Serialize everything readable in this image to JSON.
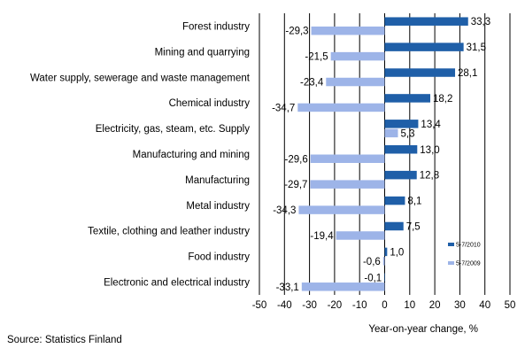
{
  "chart_data": {
    "type": "bar",
    "orientation": "horizontal",
    "categories": [
      "Forest industry",
      "Mining and quarrying",
      "Water supply, sewerage and waste management",
      "Chemical industry",
      "Electricity, gas, steam, etc. Supply",
      "Manufacturing and mining",
      "Manufacturing",
      "Metal industry",
      "Textile, clothing and leather industry",
      "Food industry",
      "Electronic and electrical industry"
    ],
    "series": [
      {
        "name": "5-7/2010",
        "color": "#1F5FA8",
        "values": [
          33.3,
          31.5,
          28.1,
          18.2,
          13.4,
          13.0,
          12.8,
          8.1,
          7.5,
          1.0,
          -0.1
        ],
        "labels": [
          "33,3",
          "31,5",
          "28,1",
          "18,2",
          "13,4",
          "13,0",
          "12,8",
          "8,1",
          "7,5",
          "1,0",
          "-0,1"
        ]
      },
      {
        "name": "5-7/2009",
        "color": "#9DB4E8",
        "values": [
          -29.3,
          -21.5,
          -23.4,
          -34.7,
          5.3,
          -29.6,
          -29.7,
          -34.3,
          -19.4,
          -0.6,
          -33.1
        ],
        "labels": [
          "-29,3",
          "-21,5",
          "-23,4",
          "-34,7",
          "5,3",
          "-29,6",
          "-29,7",
          "-34,3",
          "-19,4",
          "-0,6",
          "-33,1"
        ]
      }
    ],
    "xlim": [
      -50,
      50
    ],
    "xticks": [
      "-50",
      "-40",
      "-30",
      "-20",
      "-10",
      "0",
      "10",
      "20",
      "30",
      "40",
      "50"
    ],
    "xlabel": "Year-on-year change, %",
    "grid": "vertical lines at major ticks",
    "legend_position": "right"
  },
  "source": "Source: Statistics Finland"
}
